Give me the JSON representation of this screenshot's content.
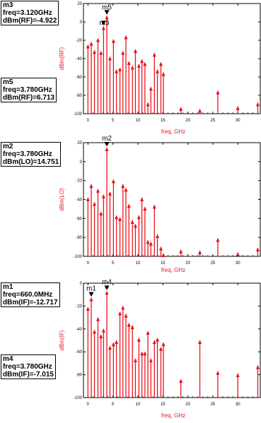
{
  "colors": {
    "trace": "#e8141c",
    "axis_label": "#e8141c",
    "frame": "#000000",
    "box_border": "#000000"
  },
  "chart_data": [
    {
      "type": "bar",
      "style": "spectrum-stems",
      "xlabel": "freq, GHz",
      "ylabel": "dBm(RF)",
      "xlim": [
        -0.9,
        34.5
      ],
      "ylim": [
        -100,
        20
      ],
      "xticks": [
        0,
        5,
        10,
        15,
        20,
        25,
        30
      ],
      "yticks": [
        -100,
        -80,
        -60,
        -40,
        -20,
        0,
        20
      ],
      "tick_labels_x": [
        "0",
        "5",
        "10",
        "15",
        "20",
        "25",
        "30"
      ],
      "tick_labels_y": [
        "-100",
        "-80",
        "-60",
        "-40",
        "-20",
        "0",
        "20"
      ],
      "series": [
        {
          "x": [
            0.0,
            0.66,
            1.3,
            2.0,
            2.6,
            3.12,
            3.78,
            4.4,
            5.1,
            5.7,
            6.4,
            7.0,
            7.6,
            8.2,
            8.9,
            9.5,
            10.2,
            10.8,
            11.4,
            12.0,
            12.6,
            13.3,
            13.9,
            14.6,
            15.1,
            18.6,
            22.4,
            26.0,
            30.0,
            34.0
          ],
          "y": [
            -25,
            -22,
            -31,
            -18,
            -32,
            -5,
            6.7,
            -38,
            -19,
            -52,
            -50,
            -32,
            -15,
            -43,
            -48,
            -30,
            -46,
            -41,
            -44,
            -88,
            -71,
            -34,
            -52,
            -44,
            -55,
            -93,
            -95,
            -75,
            -92,
            -88
          ]
        }
      ],
      "markers": [
        {
          "id": "m3",
          "x": 3.12,
          "y": -4.922,
          "lines": [
            "m3",
            "freq=3.120GHz",
            "dBm(RF)=-4.922"
          ]
        },
        {
          "id": "m5",
          "x": 3.78,
          "y": 6.713,
          "lines": [
            "m5",
            "freq=3.780GHz",
            "dBm(RF)=6.713"
          ]
        }
      ]
    },
    {
      "type": "bar",
      "style": "spectrum-stems",
      "xlabel": "freq, GHz",
      "ylabel": "dBm(LO)",
      "xlim": [
        -0.9,
        34.5
      ],
      "ylim": [
        -100,
        20
      ],
      "xticks": [
        0,
        5,
        10,
        15,
        20,
        25,
        30
      ],
      "yticks": [
        -100,
        -80,
        -60,
        -40,
        -20,
        0,
        20
      ],
      "tick_labels_x": [
        "0",
        "5",
        "10",
        "15",
        "20",
        "25",
        "30"
      ],
      "tick_labels_y": [
        "-100",
        "-80",
        "-60",
        "-40",
        "-20",
        "0",
        "20"
      ],
      "series": [
        {
          "x": [
            0.0,
            0.66,
            1.3,
            2.0,
            2.6,
            3.12,
            3.78,
            4.4,
            5.1,
            5.7,
            6.4,
            7.0,
            7.6,
            8.2,
            8.9,
            9.5,
            10.2,
            10.8,
            11.4,
            12.0,
            12.6,
            13.3,
            13.9,
            14.6,
            15.1,
            18.6,
            22.4,
            26.0,
            30.0,
            34.0
          ],
          "y": [
            -38,
            -24,
            -43,
            -29,
            -53,
            -35,
            14.751,
            -32,
            -19,
            -57,
            -59,
            -24,
            -28,
            -45,
            -62,
            -66,
            -57,
            -38,
            -48,
            -83,
            -85,
            -46,
            -77,
            -90,
            -97,
            -93,
            -94,
            -81,
            -96,
            -91
          ]
        }
      ],
      "markers": [
        {
          "id": "m2",
          "x": 3.78,
          "y": 14.751,
          "lines": [
            "m2",
            "freq=3.780GHz",
            "dBm(LO)=14.751"
          ]
        }
      ]
    },
    {
      "type": "bar",
      "style": "spectrum-stems",
      "xlabel": "freq, GHz",
      "ylabel": "dBm(IF)",
      "xlim": [
        -0.9,
        34.5
      ],
      "ylim": [
        -100,
        0
      ],
      "xticks": [
        0,
        5,
        10,
        15,
        20,
        25,
        30
      ],
      "yticks": [
        -100,
        -80,
        -60,
        -40,
        -20,
        0
      ],
      "tick_labels_x": [
        "0",
        "5",
        "10",
        "15",
        "20",
        "25",
        "30"
      ],
      "tick_labels_y": [
        "-100",
        "-80",
        "-60",
        "-40",
        "-20",
        "0"
      ],
      "series": [
        {
          "x": [
            0.0,
            0.66,
            1.3,
            2.0,
            2.6,
            3.12,
            3.78,
            4.4,
            5.1,
            5.7,
            6.4,
            7.0,
            7.6,
            8.2,
            8.9,
            9.5,
            10.2,
            10.8,
            11.4,
            12.0,
            12.6,
            13.3,
            13.9,
            14.6,
            15.1,
            18.6,
            22.4,
            26.0,
            30.0,
            34.0
          ],
          "y": [
            -21,
            -12.717,
            -41,
            -30,
            -45,
            -40,
            -7.015,
            -55,
            -52,
            -50,
            -25,
            -20,
            -27,
            -35,
            -37,
            -66,
            -48,
            -60,
            -60,
            -42,
            -66,
            -50,
            -48,
            -56,
            -52,
            -84,
            -50,
            -77,
            -79,
            -72
          ]
        }
      ],
      "markers": [
        {
          "id": "m1",
          "x": 0.66,
          "y": -12.717,
          "lines": [
            "m1",
            "freq=660.0MHz",
            "dBm(IF)=-12.717"
          ]
        },
        {
          "id": "m4",
          "x": 3.78,
          "y": -7.015,
          "lines": [
            "m4",
            "freq=3.780GHz",
            "dBm(IF)=-7.015"
          ]
        }
      ]
    }
  ]
}
